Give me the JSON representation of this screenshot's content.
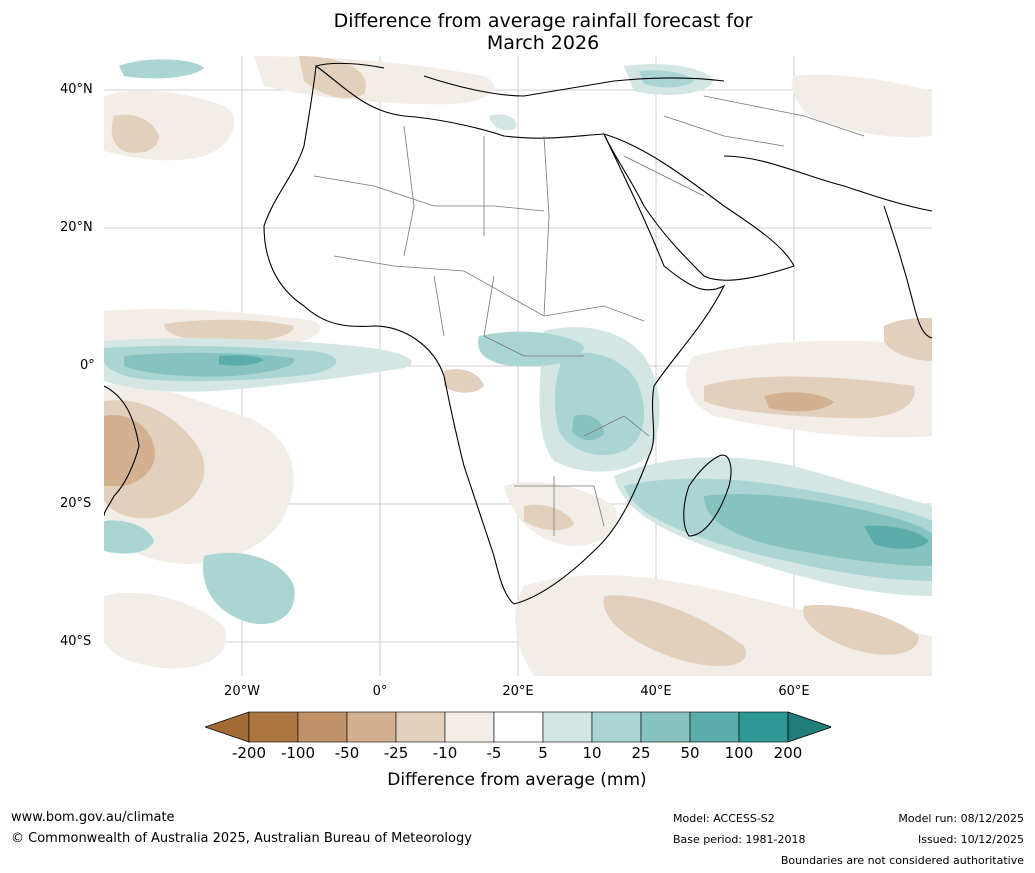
{
  "title": {
    "line1": "Difference from average rainfall forecast for",
    "line2": "March 2026"
  },
  "map": {
    "lat_labels": [
      "40°N",
      "20°N",
      "0°",
      "20°S",
      "40°S"
    ],
    "lon_labels": [
      "20°W",
      "0°",
      "20°E",
      "40°E",
      "60°E"
    ],
    "extent": {
      "lon_min": -40,
      "lon_max": 80,
      "lat_min": -45,
      "lat_max": 45
    }
  },
  "colorbar": {
    "label": "Difference from average (mm)",
    "ticks": [
      "-200",
      "-100",
      "-50",
      "-25",
      "-10",
      "-5",
      "5",
      "10",
      "25",
      "50",
      "100",
      "200"
    ],
    "colors": [
      "#a36b35",
      "#ac7641",
      "#c19168",
      "#d3b190",
      "#e2cfbc",
      "#f2ede7",
      "#ffffff",
      "#d3e6e4",
      "#aad5d3",
      "#85c2c0",
      "#5aadaa",
      "#2e9894",
      "#217e7a"
    ]
  },
  "footer": {
    "url": "www.bom.gov.au/climate",
    "copyright": "© Commonwealth of Australia 2025, Australian Bureau of Meteorology",
    "model": "Model: ACCESS-S2",
    "base_period": "Base period: 1981-2018",
    "model_run": "Model run: 08/12/2025",
    "issued": "Issued: 10/12/2025",
    "disclaimer": "Boundaries are not considered authoritative"
  }
}
